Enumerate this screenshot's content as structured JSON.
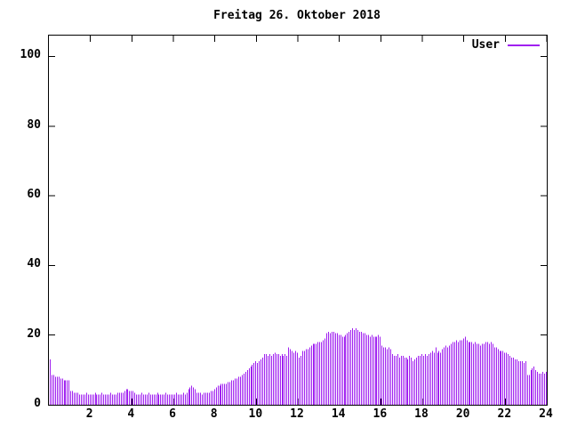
{
  "title": "Freitag 26. Oktober 2018",
  "legend": {
    "label": "User",
    "color": "#a020f0"
  },
  "colors": {
    "bars": "#a020f0",
    "frame": "#000000",
    "background": "#ffffff"
  },
  "axes": {
    "y_ticks": [
      0,
      20,
      40,
      60,
      80,
      100
    ],
    "x_ticks": [
      2,
      4,
      6,
      8,
      10,
      12,
      14,
      16,
      18,
      20,
      22,
      24
    ]
  },
  "chart_data": {
    "type": "bar",
    "title": "Freitag 26. Oktober 2018",
    "xlabel": "",
    "ylabel": "",
    "legend_position": "top-right-inside",
    "grid": false,
    "x_unit": "hour-of-day",
    "interval_minutes": 5,
    "x_start_hour": 0,
    "xlim": [
      0,
      24
    ],
    "ylim": [
      0,
      106
    ],
    "x_tick_labels": [
      2,
      4,
      6,
      8,
      10,
      12,
      14,
      16,
      18,
      20,
      22,
      24
    ],
    "y_tick_labels": [
      0,
      20,
      40,
      60,
      80,
      100
    ],
    "series": [
      {
        "name": "User",
        "color": "#a020f0",
        "values": [
          13,
          8.5,
          8.5,
          8,
          8,
          8,
          7.5,
          7.5,
          7,
          7,
          7,
          7,
          4,
          4,
          3.5,
          3.5,
          3.5,
          3,
          3,
          3,
          3,
          3.5,
          3,
          3,
          3,
          3,
          3.5,
          3,
          3,
          3,
          3.5,
          3,
          3,
          3,
          3,
          3.5,
          3,
          3,
          3,
          3.5,
          3.5,
          3.5,
          3.5,
          4,
          4.5,
          4.5,
          4,
          4,
          4,
          3.5,
          3,
          3,
          3,
          3.5,
          3,
          3,
          3,
          3.5,
          3,
          3,
          3,
          3,
          3.5,
          3,
          3,
          3,
          3,
          3.5,
          3,
          3,
          3,
          3,
          3,
          3.5,
          3,
          3,
          3,
          3.5,
          3,
          3.5,
          4.5,
          5,
          5.5,
          5,
          4.5,
          3.5,
          3.5,
          3.5,
          3,
          3.5,
          3.5,
          3.5,
          3.5,
          4,
          4,
          4.5,
          5,
          5.5,
          5.5,
          6,
          6,
          6,
          6,
          6.5,
          6.5,
          7,
          7,
          7.5,
          7.5,
          8,
          8,
          8.5,
          9,
          9.5,
          10,
          10.5,
          11,
          11.5,
          12,
          12.5,
          12,
          12.5,
          13,
          13.5,
          14.5,
          14.5,
          14,
          14.5,
          14,
          14.5,
          15,
          14.5,
          14.5,
          14,
          14.5,
          14,
          14.5,
          14,
          16.5,
          16,
          15.5,
          15,
          15.5,
          15,
          13.5,
          14,
          15.5,
          15.5,
          16,
          16,
          16.5,
          17,
          17.5,
          17.5,
          17.5,
          18,
          18,
          18,
          18.5,
          19,
          20.5,
          21,
          20.5,
          21,
          21,
          20.5,
          20.5,
          20,
          20,
          19.5,
          19.5,
          20,
          20.5,
          21,
          21.5,
          22,
          21.5,
          22,
          21.5,
          21,
          21,
          20.5,
          20.5,
          20,
          20,
          19.5,
          20,
          19.5,
          19.5,
          19.5,
          20,
          19.5,
          17,
          16.5,
          16.5,
          16,
          16.5,
          16,
          14.5,
          14,
          14,
          14.5,
          13.5,
          14,
          14,
          13.5,
          13.5,
          13,
          14,
          13.5,
          12.5,
          13,
          13.5,
          14,
          14,
          14.5,
          14,
          14.5,
          14,
          14.5,
          15,
          15.5,
          15,
          16.5,
          15,
          15.5,
          15,
          16,
          16.5,
          17,
          16.5,
          17,
          17.5,
          18,
          18,
          18.5,
          18,
          18.5,
          18.5,
          19,
          19.5,
          18.5,
          18,
          18,
          18,
          17.5,
          18,
          17.5,
          17.5,
          17,
          17.5,
          17.5,
          18,
          18,
          17.5,
          18,
          17.5,
          16.5,
          16.5,
          16,
          15.5,
          15.5,
          15.5,
          15,
          15,
          14.5,
          14,
          13.5,
          13.5,
          13,
          13,
          12.5,
          12.5,
          12.5,
          12,
          12.5,
          8.5,
          8.5,
          10,
          10.5,
          11,
          10,
          9.5,
          9,
          9,
          9.5,
          9,
          9.5
        ]
      }
    ]
  }
}
